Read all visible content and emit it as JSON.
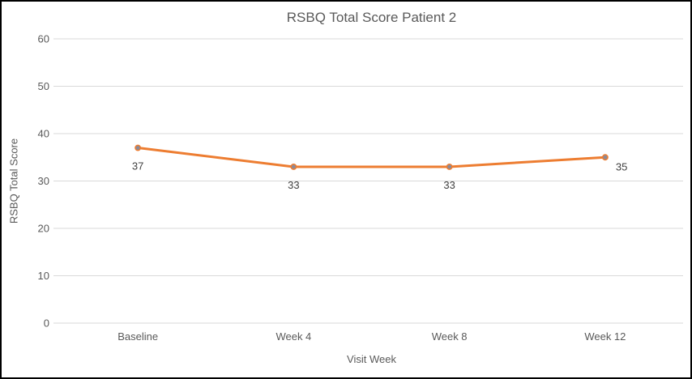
{
  "window": {
    "title": "RSBQ Total Score Patient 2"
  },
  "chart_data": {
    "type": "line",
    "title": "RSBQ Total Score Patient 2",
    "xlabel": "Visit Week",
    "ylabel": "RSBQ Total Score",
    "categories": [
      "Baseline",
      "Week 4",
      "Week 8",
      "Week 12"
    ],
    "series": [
      {
        "name": "RSBQ Total Score",
        "values": [
          37,
          33,
          33,
          35
        ],
        "data_labels": [
          "37",
          "33",
          "33",
          "35"
        ],
        "label_positions": [
          "below",
          "below",
          "below",
          "below-right"
        ],
        "line_color": "#ED7D31",
        "marker_fill": "#8a8a99",
        "marker_stroke": "#ED7D31"
      }
    ],
    "ylim": [
      0,
      60
    ],
    "y_ticks": [
      0,
      10,
      20,
      30,
      40,
      50,
      60
    ],
    "grid": "horizontal",
    "gridline_color": "#D9D9D9",
    "axis_text_color": "#595959",
    "data_label_color": "#404040",
    "legend": "none"
  }
}
